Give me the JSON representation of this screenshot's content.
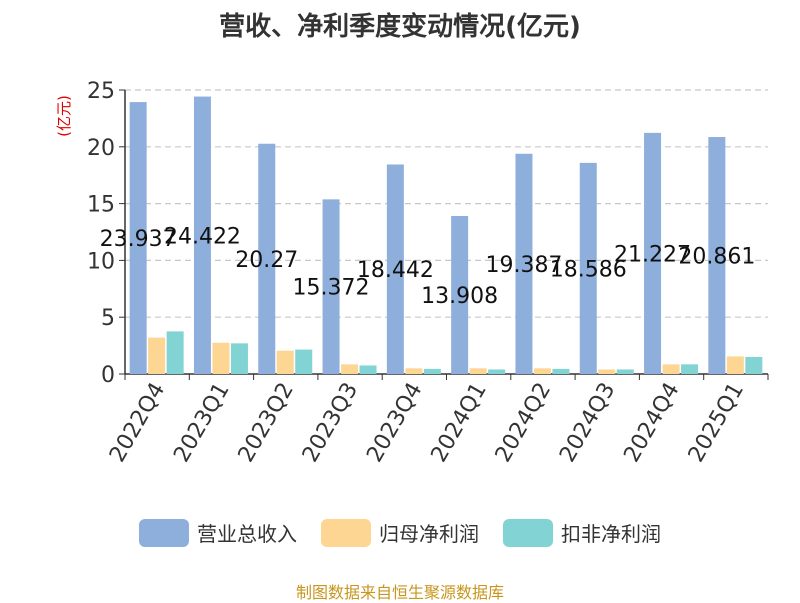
{
  "chart_data": {
    "type": "bar",
    "title": "营收、净利季度变动情况(亿元)",
    "ylabel": "(亿元)",
    "xlabel": "",
    "ylim": [
      0,
      25
    ],
    "yticks": [
      0,
      5,
      10,
      15,
      20,
      25
    ],
    "categories": [
      "2022Q4",
      "2023Q1",
      "2023Q2",
      "2023Q3",
      "2023Q4",
      "2024Q1",
      "2024Q2",
      "2024Q3",
      "2024Q4",
      "2025Q1"
    ],
    "series": [
      {
        "name": "营业总收入",
        "color": "#8eaedb",
        "values": [
          23.937,
          24.422,
          20.27,
          15.372,
          18.442,
          13.908,
          19.387,
          18.586,
          21.227,
          20.861
        ],
        "labels": [
          "23.937",
          "24.422",
          "20.27",
          "15.372",
          "18.442",
          "13.908",
          "19.387",
          "18.586",
          "21.227",
          "20.861"
        ]
      },
      {
        "name": "归母净利润",
        "color": "#fdd693",
        "values": [
          3.2,
          2.75,
          2.05,
          0.85,
          0.5,
          0.5,
          0.5,
          0.4,
          0.85,
          1.55
        ]
      },
      {
        "name": "扣非净利润",
        "color": "#82d3d3",
        "values": [
          3.75,
          2.7,
          2.15,
          0.75,
          0.45,
          0.4,
          0.45,
          0.4,
          0.85,
          1.5
        ]
      }
    ],
    "grid": true,
    "legend_position": "bottom"
  },
  "source": "制图数据来自恒生聚源数据库"
}
